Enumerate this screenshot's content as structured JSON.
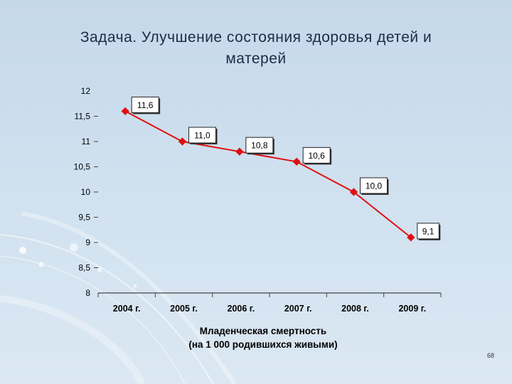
{
  "slide": {
    "title_line1": "Задача. Улучшение состояния здоровья детей и",
    "title_line2": "матерей",
    "page_number": "68"
  },
  "chart_data": {
    "type": "line",
    "categories": [
      "2004 г.",
      "2005 г.",
      "2006 г.",
      "2007 г.",
      "2008 г.",
      "2009 г."
    ],
    "series": [
      {
        "values": [
          11.6,
          11.0,
          10.8,
          10.6,
          10.0,
          9.1
        ],
        "labels": [
          "11,6",
          "11,0",
          "10,8",
          "10,6",
          "10,0",
          "9,1"
        ],
        "color": "#e01010"
      }
    ],
    "yticks": [
      "8",
      "8,5",
      "9",
      "9,5",
      "10",
      "10,5",
      "11",
      "11,5",
      "12"
    ],
    "ylim": [
      8,
      12
    ],
    "xlabel_line1": "Младенческая смертность",
    "xlabel_line2": "(на 1 000 родившихся живыми)",
    "title": "",
    "ylabel": "",
    "grid": false,
    "legend": "none"
  }
}
